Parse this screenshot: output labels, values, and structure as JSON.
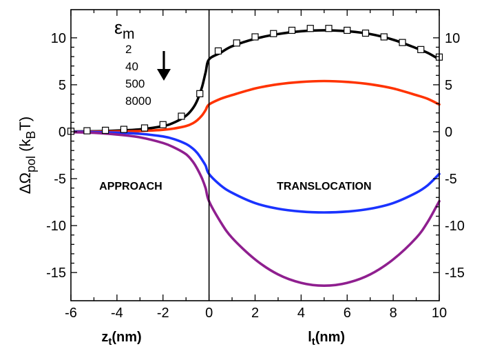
{
  "chart_data": {
    "type": "line",
    "title": "",
    "ylabel": {
      "main": "ΔΩ",
      "sub": "pol",
      "after": " (k",
      "sub2": "B",
      "end": "T)"
    },
    "xlabel_left": {
      "main": "z",
      "sub": "t",
      "end": "(nm)"
    },
    "xlabel_right": {
      "main": "l",
      "sub": "t",
      "end": "(nm)"
    },
    "xlim": [
      -6,
      10
    ],
    "ylim": [
      -18,
      13
    ],
    "xticks": [
      -6,
      -4,
      -2,
      0,
      2,
      4,
      6,
      8,
      10
    ],
    "yticks": [
      -15,
      -10,
      -5,
      0,
      5,
      10
    ],
    "grid": false,
    "divider_x": 0,
    "regions": [
      {
        "label": "APPROACH",
        "x": -3.4,
        "y": -5.8
      },
      {
        "label": "TRANSLOCATION",
        "x": 5,
        "y": -5.8
      }
    ],
    "legend": {
      "title_main": "ε",
      "title_sub": "m",
      "entries": [
        "2",
        "40",
        "500",
        "8000"
      ],
      "arrow": "down-arrow",
      "placement": "top-left"
    },
    "series": [
      {
        "name": "2",
        "color": "#000000",
        "x": [
          -6,
          -5,
          -4,
          -3,
          -2,
          -1.5,
          -1,
          -0.7,
          -0.5,
          -0.3,
          -0.15,
          0,
          0.5,
          1,
          2,
          3,
          4,
          5,
          6,
          7,
          8,
          9,
          9.5,
          10
        ],
        "y": [
          0.02,
          0.05,
          0.12,
          0.25,
          0.6,
          1.0,
          1.7,
          2.5,
          3.4,
          4.8,
          6.3,
          7.7,
          8.4,
          9.1,
          9.9,
          10.4,
          10.7,
          10.8,
          10.7,
          10.4,
          9.8,
          8.9,
          8.4,
          7.7
        ]
      },
      {
        "name": "40",
        "color": "#ff3300",
        "x": [
          -6,
          -5,
          -4,
          -3,
          -2,
          -1.5,
          -1,
          -0.7,
          -0.5,
          -0.3,
          -0.15,
          0,
          0.5,
          1,
          2,
          3,
          4,
          5,
          6,
          7,
          8,
          9,
          9.5,
          10
        ],
        "y": [
          0,
          0.01,
          0.03,
          0.08,
          0.2,
          0.35,
          0.6,
          0.9,
          1.25,
          1.75,
          2.3,
          2.9,
          3.5,
          3.9,
          4.6,
          5.05,
          5.3,
          5.4,
          5.3,
          5.05,
          4.6,
          3.9,
          3.5,
          2.9
        ]
      },
      {
        "name": "500",
        "color": "#1a33ff",
        "x": [
          -6,
          -5,
          -4,
          -3,
          -2,
          -1.5,
          -1,
          -0.7,
          -0.5,
          -0.3,
          -0.15,
          0,
          0.5,
          1,
          2,
          3,
          4,
          5,
          6,
          7,
          8,
          9,
          9.5,
          10
        ],
        "y": [
          0,
          -0.03,
          -0.1,
          -0.22,
          -0.5,
          -0.8,
          -1.3,
          -1.8,
          -2.3,
          -3.0,
          -3.6,
          -4.5,
          -5.7,
          -6.5,
          -7.6,
          -8.2,
          -8.5,
          -8.6,
          -8.5,
          -8.2,
          -7.6,
          -6.5,
          -5.7,
          -4.5
        ]
      },
      {
        "name": "8000",
        "color": "#8f1f8f",
        "x": [
          -6,
          -5,
          -4,
          -3,
          -2,
          -1.5,
          -1,
          -0.7,
          -0.5,
          -0.3,
          -0.15,
          0,
          0.5,
          1,
          2,
          3,
          4,
          5,
          6,
          7,
          8,
          9,
          9.5,
          10
        ],
        "y": [
          -0.05,
          -0.12,
          -0.3,
          -0.6,
          -1.2,
          -1.7,
          -2.4,
          -3.2,
          -4.0,
          -5.0,
          -6.0,
          -7.4,
          -9.6,
          -11.3,
          -13.6,
          -15.2,
          -16.1,
          -16.4,
          -16.1,
          -15.2,
          -13.6,
          -11.3,
          -9.6,
          -7.4
        ]
      }
    ],
    "markers": {
      "name": "",
      "shape": "open-square",
      "x": [
        -6,
        -5.3,
        -4.5,
        -3.7,
        -2.8,
        -2.0,
        -1.2,
        -0.4,
        0.4,
        1.2,
        2.0,
        2.8,
        3.6,
        4.4,
        5.2,
        6.0,
        6.8,
        7.6,
        8.4,
        9.2,
        10.0
      ],
      "y": [
        0.05,
        0.1,
        0.15,
        0.25,
        0.4,
        0.75,
        1.65,
        4.05,
        8.6,
        9.45,
        10.1,
        10.45,
        10.8,
        11.0,
        11.0,
        10.8,
        10.5,
        10.1,
        9.5,
        8.75,
        7.95
      ]
    }
  }
}
